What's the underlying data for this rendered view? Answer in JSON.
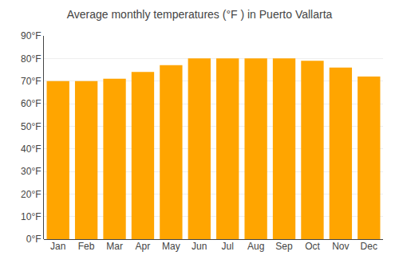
{
  "chart_data": {
    "type": "bar",
    "title": "Average monthly temperatures (°F ) in Puerto Vallarta",
    "categories": [
      "Jan",
      "Feb",
      "Mar",
      "Apr",
      "May",
      "Jun",
      "Jul",
      "Aug",
      "Sep",
      "Oct",
      "Nov",
      "Dec"
    ],
    "values": [
      70,
      70,
      71,
      74,
      77,
      80,
      80,
      80,
      80,
      79,
      76,
      72
    ],
    "color": "#FFA500",
    "ylim": [
      0,
      90
    ],
    "yticks": [
      {
        "value": 0,
        "label": "0°F"
      },
      {
        "value": 10,
        "label": "10°F"
      },
      {
        "value": 20,
        "label": "20°F"
      },
      {
        "value": 30,
        "label": "30°F"
      },
      {
        "value": 40,
        "label": "40°F"
      },
      {
        "value": 50,
        "label": "50°F"
      },
      {
        "value": 60,
        "label": "60°F"
      },
      {
        "value": 70,
        "label": "70°F"
      },
      {
        "value": 80,
        "label": "80°F"
      },
      {
        "value": 90,
        "label": "90°F"
      }
    ],
    "grid": true
  }
}
